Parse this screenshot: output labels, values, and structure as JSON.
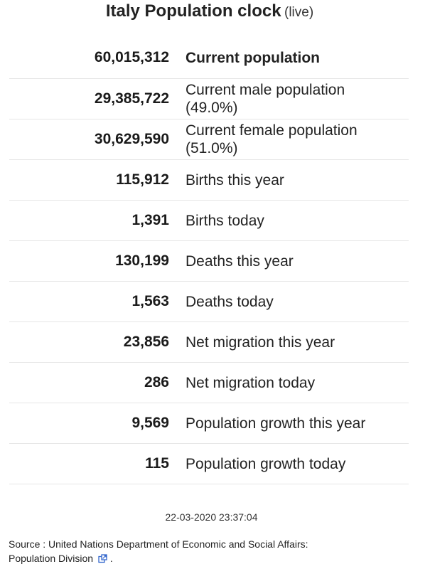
{
  "header": {
    "title": "Italy Population clock",
    "live_label": "(live)"
  },
  "stats": [
    {
      "value": "60,015,312",
      "label": "Current population",
      "label_extra": ""
    },
    {
      "value": "29,385,722",
      "label": "Current male population",
      "label_extra": "(49.0%)"
    },
    {
      "value": "30,629,590",
      "label": "Current female population",
      "label_extra": "(51.0%)"
    },
    {
      "value": "115,912",
      "label": "Births this year",
      "label_extra": ""
    },
    {
      "value": "1,391",
      "label": "Births today",
      "label_extra": ""
    },
    {
      "value": "130,199",
      "label": "Deaths this year",
      "label_extra": ""
    },
    {
      "value": "1,563",
      "label": "Deaths today",
      "label_extra": ""
    },
    {
      "value": "23,856",
      "label": "Net migration this year",
      "label_extra": ""
    },
    {
      "value": "286",
      "label": "Net migration today",
      "label_extra": ""
    },
    {
      "value": "9,569",
      "label": "Population growth this year",
      "label_extra": ""
    },
    {
      "value": "115",
      "label": "Population growth today",
      "label_extra": ""
    }
  ],
  "timestamp": "22-03-2020 23:37:04",
  "source": {
    "prefix": "Source : United Nations Department of Economic and Social Affairs:",
    "link_text": "Population Division",
    "suffix": ".",
    "icon": "external-link-icon"
  },
  "colors": {
    "text": "#1a1a1a",
    "divider": "#e6e6e6",
    "link_icon": "#3366cc"
  }
}
